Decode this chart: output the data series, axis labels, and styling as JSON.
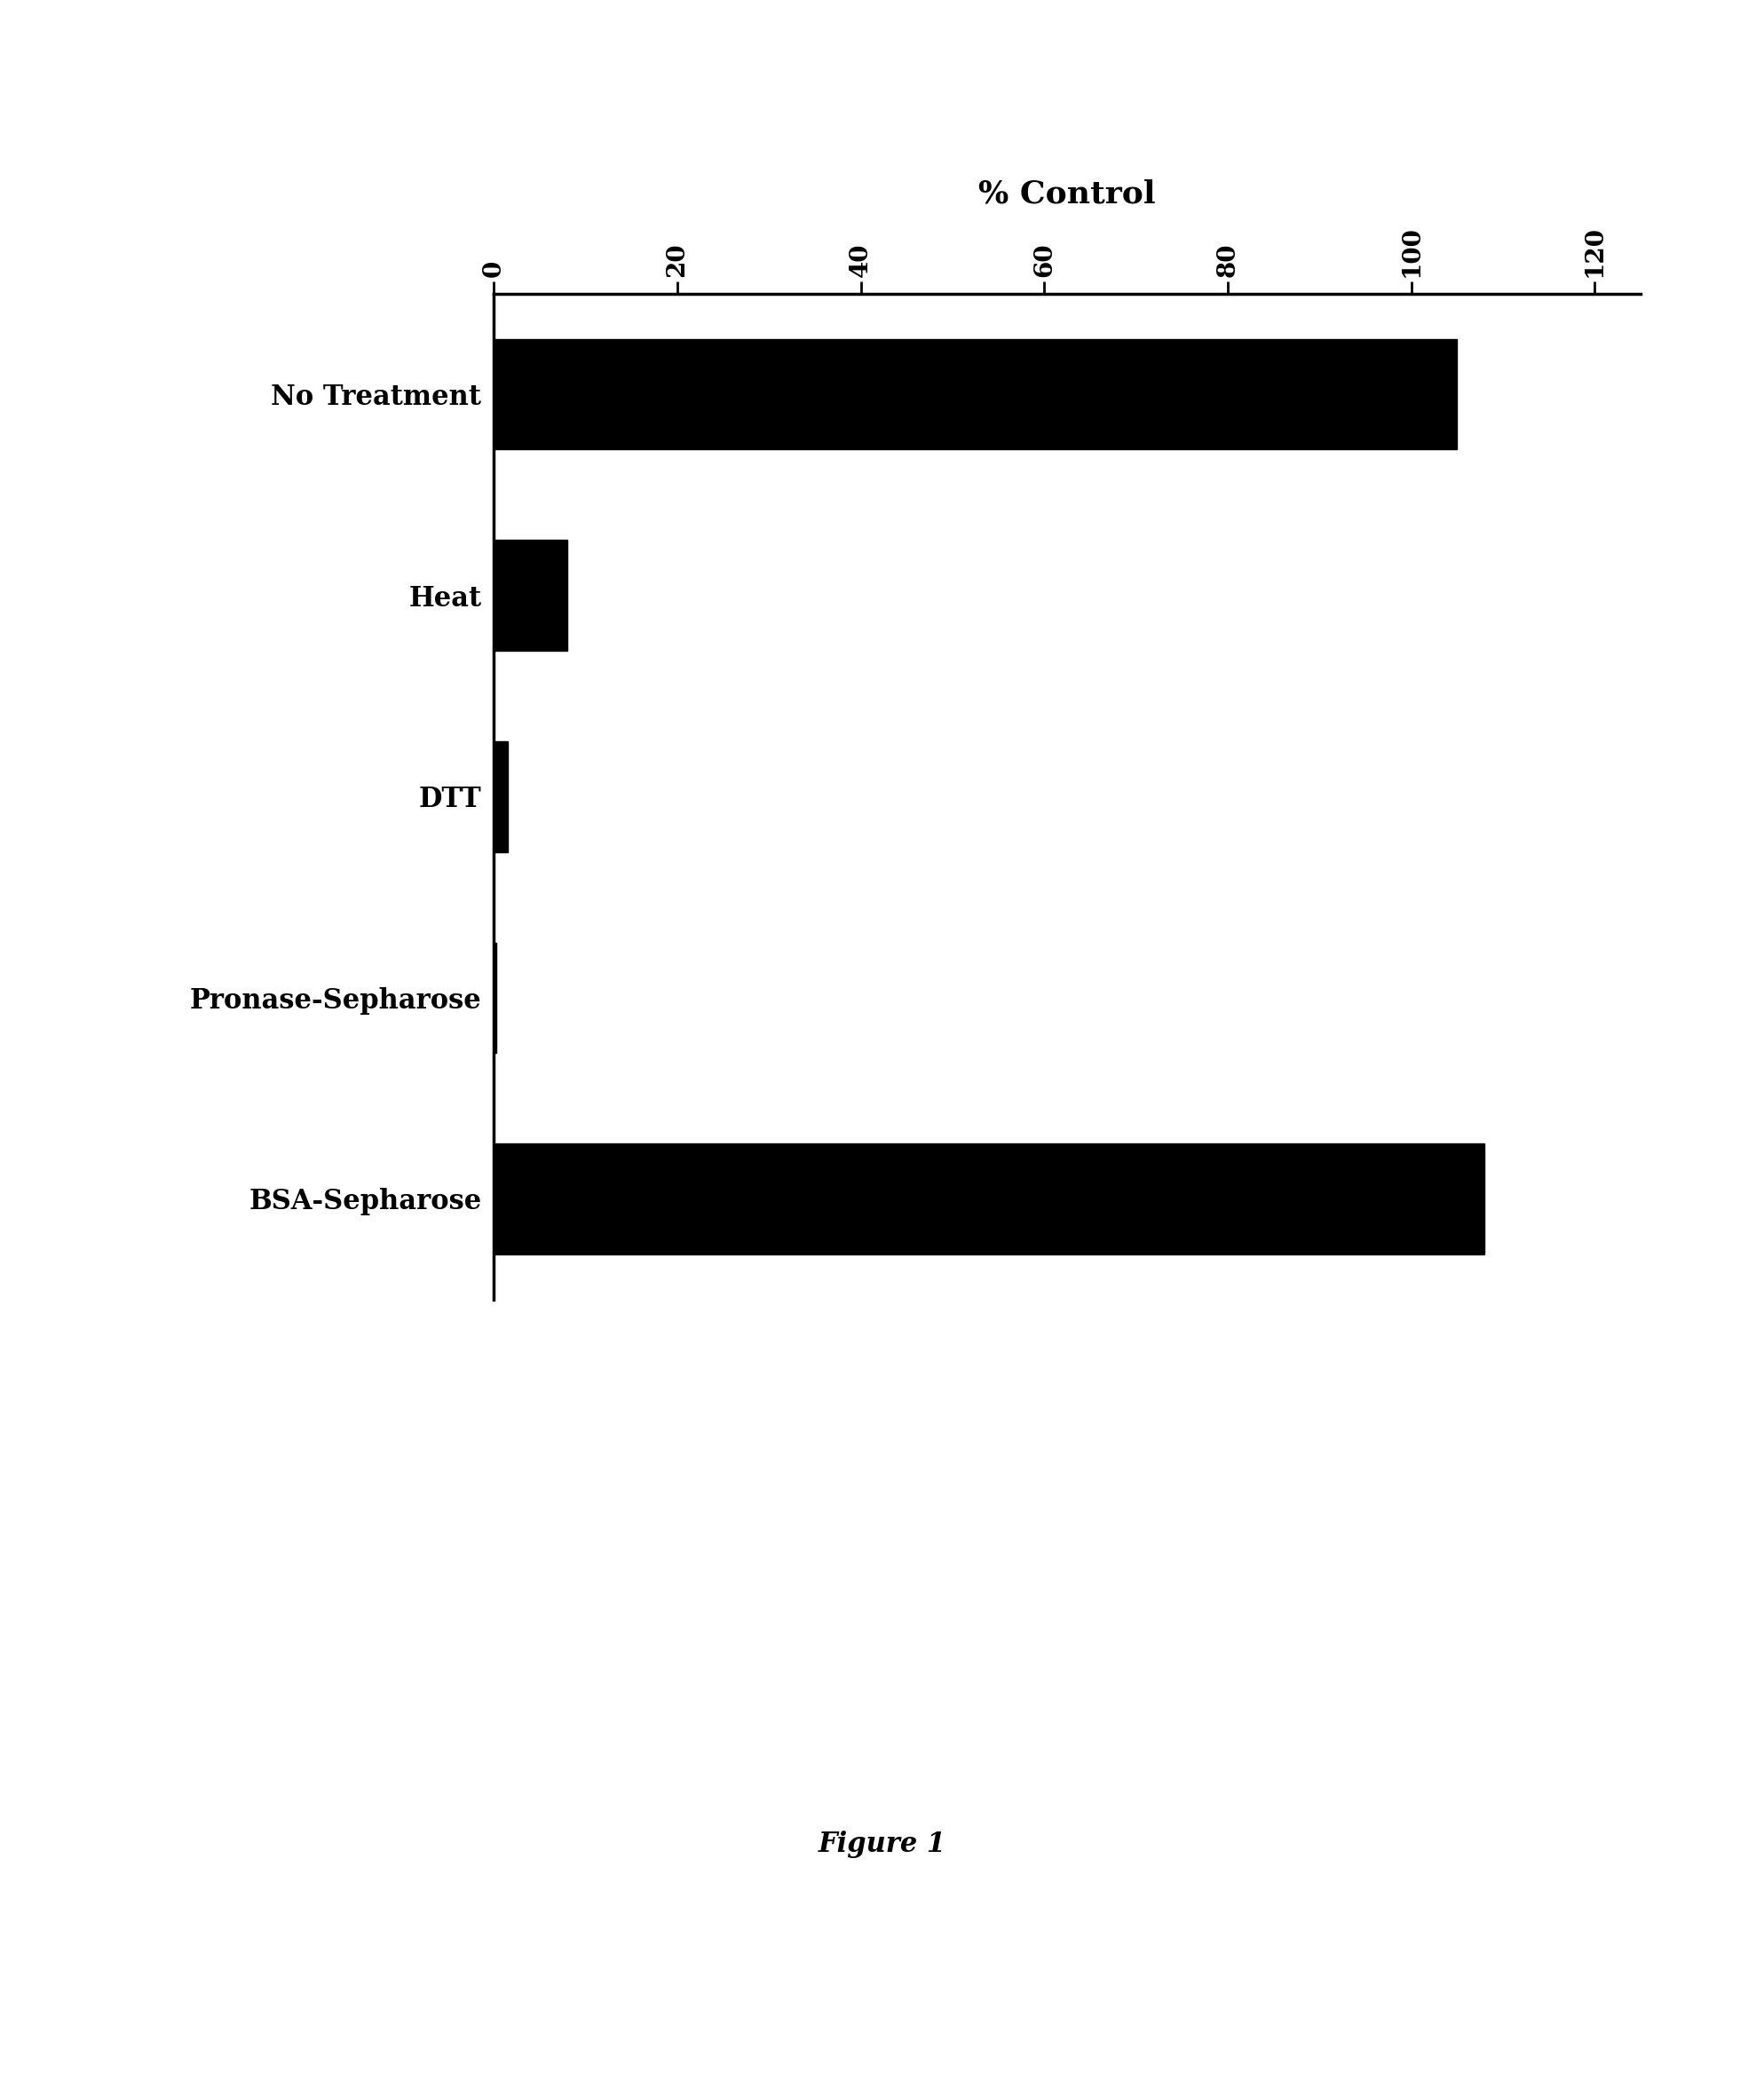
{
  "categories": [
    "No Treatment",
    "Heat",
    "DTT",
    "Pronase-Sepharose",
    "BSA-Sepharose"
  ],
  "values": [
    105,
    8,
    1.5,
    0.3,
    108
  ],
  "bar_color": "#000000",
  "background_color": "#ffffff",
  "xlabel": "% Control",
  "xlabel_fontsize": 26,
  "tick_labels": [
    "0",
    "20",
    "40",
    "60",
    "80",
    "100",
    "120"
  ],
  "tick_values": [
    0,
    20,
    40,
    60,
    80,
    100,
    120
  ],
  "xlim": [
    0,
    125
  ],
  "bar_height": 0.55,
  "figure_caption": "Figure 1",
  "caption_fontsize": 22,
  "tick_fontsize": 20,
  "category_fontsize": 22,
  "spine_linewidth": 2.5
}
